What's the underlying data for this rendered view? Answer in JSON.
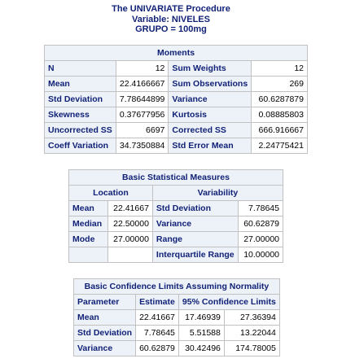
{
  "titles": {
    "procedure": "The UNIVARIATE Procedure",
    "variable": "Variable: NIVELES",
    "group": "GRUPO = 100mg"
  },
  "moments": {
    "caption": "Moments",
    "rows": [
      {
        "l1": "N",
        "v1": "12",
        "l2": "Sum Weights",
        "v2": "12"
      },
      {
        "l1": "Mean",
        "v1": "22.4166667",
        "l2": "Sum Observations",
        "v2": "269"
      },
      {
        "l1": "Std Deviation",
        "v1": "7.78644899",
        "l2": "Variance",
        "v2": "60.6287879"
      },
      {
        "l1": "Skewness",
        "v1": "0.37677956",
        "l2": "Kurtosis",
        "v2": "0.08885803"
      },
      {
        "l1": "Uncorrected SS",
        "v1": "6697",
        "l2": "Corrected SS",
        "v2": "666.916667"
      },
      {
        "l1": "Coeff Variation",
        "v1": "34.7350884",
        "l2": "Std Error Mean",
        "v2": "2.24775421"
      }
    ]
  },
  "basic": {
    "caption": "Basic Statistical Measures",
    "location_header": "Location",
    "variability_header": "Variability",
    "rows": [
      {
        "l1": "Mean",
        "v1": "22.41667",
        "l2": "Std Deviation",
        "v2": "7.78645"
      },
      {
        "l1": "Median",
        "v1": "22.50000",
        "l2": "Variance",
        "v2": "60.62879"
      },
      {
        "l1": "Mode",
        "v1": "27.00000",
        "l2": "Range",
        "v2": "27.00000"
      },
      {
        "l1": "",
        "v1": "",
        "l2": "Interquartile Range",
        "v2": "10.00000"
      }
    ]
  },
  "confidence": {
    "caption": "Basic Confidence Limits Assuming Normality",
    "headers": {
      "parameter": "Parameter",
      "estimate": "Estimate",
      "limits": "95% Confidence Limits"
    },
    "rows": [
      {
        "param": "Mean",
        "estimate": "22.41667",
        "lower": "17.46939",
        "upper": "27.36394"
      },
      {
        "param": "Std Deviation",
        "estimate": "7.78645",
        "lower": "5.51588",
        "upper": "13.22044"
      },
      {
        "param": "Variance",
        "estimate": "60.62879",
        "lower": "30.42496",
        "upper": "174.78005"
      }
    ]
  }
}
